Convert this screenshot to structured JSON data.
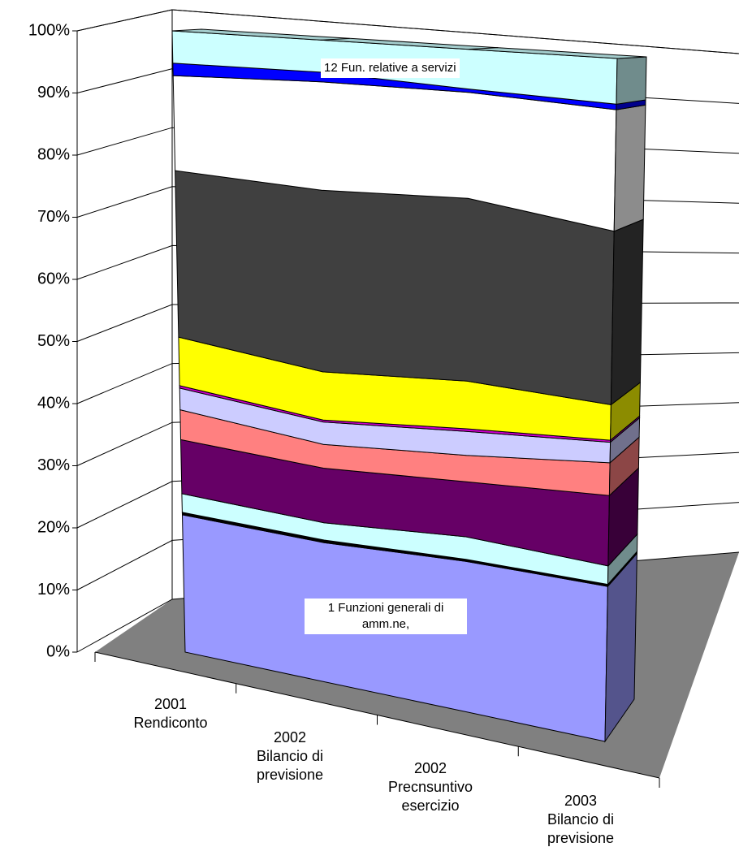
{
  "chart_data": {
    "type": "area3d",
    "categories": [
      "2001\nRendiconto",
      "2002\nBilancio di\nprevisione",
      "2002\nPrecnsuntivo\nesercizio",
      "2003\nBilancio di\nprevisione"
    ],
    "series": [
      {
        "name": "1 Funzioni generali di amm.ne,",
        "color": "#9999ff",
        "values": [
          22.1,
          21.7,
          22.7,
          22.7
        ]
      },
      {
        "color": "#000000",
        "values": [
          0.4,
          0.4,
          0.3,
          0.3
        ]
      },
      {
        "color": "#ccffff",
        "values": [
          3.0,
          2.7,
          3.4,
          2.7
        ]
      },
      {
        "color": "#660066",
        "values": [
          8.7,
          8.5,
          8.3,
          10.3
        ]
      },
      {
        "color": "#ff8080",
        "values": [
          4.8,
          3.7,
          4.0,
          4.8
        ]
      },
      {
        "color": "#ccccff",
        "values": [
          3.5,
          3.5,
          3.6,
          3.0
        ]
      },
      {
        "color": "#cc00cc",
        "values": [
          0.4,
          0.3,
          0.4,
          0.3
        ]
      },
      {
        "color": "#ffff00",
        "values": [
          7.8,
          7.5,
          7.2,
          5.2
        ]
      },
      {
        "color": "#404040",
        "values": [
          26.8,
          28.3,
          27.6,
          25.4
        ]
      },
      {
        "color": "#ffffff",
        "values": [
          15.3,
          16.9,
          16.0,
          17.8
        ]
      },
      {
        "color": "#0000ff",
        "values": [
          2.0,
          1.5,
          0.5,
          0.8
        ]
      },
      {
        "name": "12 Fun. relative a servizi",
        "color": "#ccffff",
        "values": [
          5.2,
          5.0,
          6.0,
          6.7
        ]
      }
    ],
    "ylim": [
      0,
      100
    ],
    "yticks": [
      {
        "value": 0,
        "label": "0%"
      },
      {
        "value": 10,
        "label": "10%"
      },
      {
        "value": 20,
        "label": "20%"
      },
      {
        "value": 30,
        "label": "30%"
      },
      {
        "value": 40,
        "label": "40%"
      },
      {
        "value": 50,
        "label": "50%"
      },
      {
        "value": 60,
        "label": "60%"
      },
      {
        "value": 70,
        "label": "70%"
      },
      {
        "value": 80,
        "label": "80%"
      },
      {
        "value": 90,
        "label": "90%"
      },
      {
        "value": 100,
        "label": "100%"
      }
    ],
    "grid": true
  }
}
